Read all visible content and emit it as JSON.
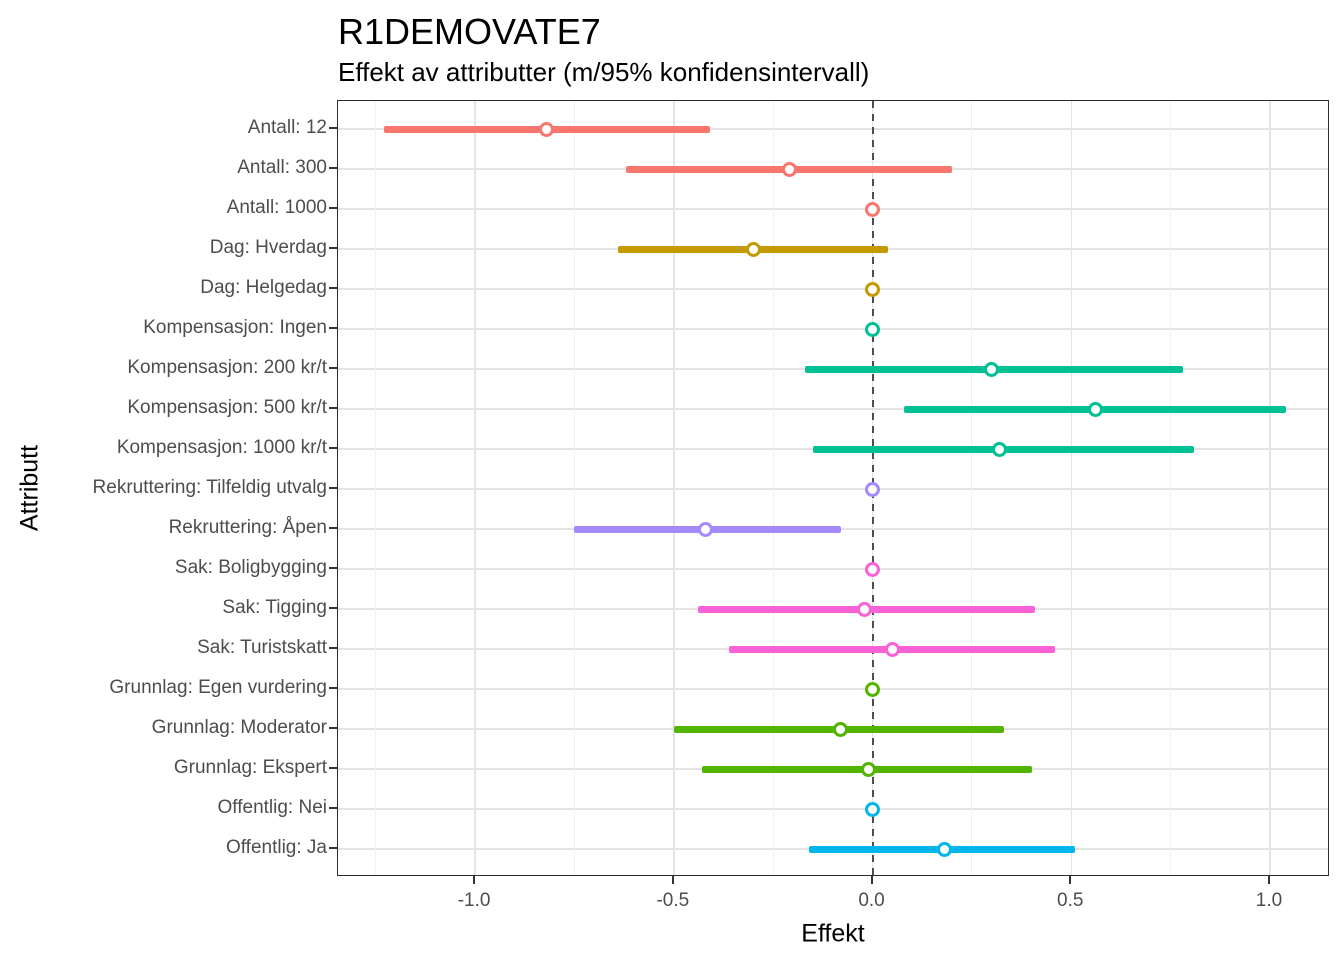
{
  "chart_data": {
    "type": "scatter",
    "subtype": "horizontal-pointrange-forest-plot",
    "title": "R1DEMOVATE7",
    "subtitle": "Effekt av attributter (m/95% konfidensintervall)",
    "xlabel": "Effekt",
    "ylabel": "Attributt",
    "xlim": [
      -1.345,
      1.151
    ],
    "x_major_ticks": [
      -1.0,
      -0.5,
      0.0,
      0.5,
      1.0
    ],
    "x_tick_labels": [
      "-1.0",
      "-0.5",
      "0.0",
      "0.5",
      "1.0"
    ],
    "x_minor_gridlines": [
      -1.25,
      -0.75,
      -0.25,
      0.25,
      0.75
    ],
    "reference_line_x": 0,
    "grid": true,
    "legend_position": "none",
    "rows": [
      {
        "label": "Antall: 12",
        "group": "Antall",
        "color": "#F8766D",
        "mean": -0.82,
        "lo": -1.23,
        "hi": -0.41
      },
      {
        "label": "Antall: 300",
        "group": "Antall",
        "color": "#F8766D",
        "mean": -0.21,
        "lo": -0.62,
        "hi": 0.2
      },
      {
        "label": "Antall: 1000",
        "group": "Antall",
        "color": "#F8766D",
        "mean": 0.0,
        "lo": 0.0,
        "hi": 0.0
      },
      {
        "label": "Dag: Hverdag",
        "group": "Dag",
        "color": "#C49A00",
        "mean": -0.3,
        "lo": -0.64,
        "hi": 0.04
      },
      {
        "label": "Dag: Helgedag",
        "group": "Dag",
        "color": "#C49A00",
        "mean": 0.0,
        "lo": 0.0,
        "hi": 0.0
      },
      {
        "label": "Kompensasjon: Ingen",
        "group": "Kompensasjon",
        "color": "#00C094",
        "mean": 0.0,
        "lo": 0.0,
        "hi": 0.0
      },
      {
        "label": "Kompensasjon: 200 kr/t",
        "group": "Kompensasjon",
        "color": "#00C094",
        "mean": 0.3,
        "lo": -0.17,
        "hi": 0.78
      },
      {
        "label": "Kompensasjon: 500 kr/t",
        "group": "Kompensasjon",
        "color": "#00C094",
        "mean": 0.56,
        "lo": 0.08,
        "hi": 1.04
      },
      {
        "label": "Kompensasjon: 1000 kr/t",
        "group": "Kompensasjon",
        "color": "#00C094",
        "mean": 0.32,
        "lo": -0.15,
        "hi": 0.81
      },
      {
        "label": "Rekruttering: Tilfeldig utvalg",
        "group": "Rekruttering",
        "color": "#A58AFF",
        "mean": 0.0,
        "lo": 0.0,
        "hi": 0.0
      },
      {
        "label": "Rekruttering: Åpen",
        "group": "Rekruttering",
        "color": "#A58AFF",
        "mean": -0.42,
        "lo": -0.75,
        "hi": -0.08
      },
      {
        "label": "Sak: Boligbygging",
        "group": "Sak",
        "color": "#FB61D7",
        "mean": 0.0,
        "lo": 0.0,
        "hi": 0.0
      },
      {
        "label": "Sak: Tigging",
        "group": "Sak",
        "color": "#FB61D7",
        "mean": -0.02,
        "lo": -0.44,
        "hi": 0.41
      },
      {
        "label": "Sak: Turistskatt",
        "group": "Sak",
        "color": "#FB61D7",
        "mean": 0.05,
        "lo": -0.36,
        "hi": 0.46
      },
      {
        "label": "Grunnlag: Egen vurdering",
        "group": "Grunnlag",
        "color": "#53B400",
        "mean": 0.0,
        "lo": 0.0,
        "hi": 0.0
      },
      {
        "label": "Grunnlag: Moderator",
        "group": "Grunnlag",
        "color": "#53B400",
        "mean": -0.08,
        "lo": -0.5,
        "hi": 0.33
      },
      {
        "label": "Grunnlag: Ekspert",
        "group": "Grunnlag",
        "color": "#53B400",
        "mean": -0.01,
        "lo": -0.43,
        "hi": 0.4
      },
      {
        "label": "Offentlig: Nei",
        "group": "Offentlig",
        "color": "#00B6EB",
        "mean": 0.0,
        "lo": 0.0,
        "hi": 0.0
      },
      {
        "label": "Offentlig: Ja",
        "group": "Offentlig",
        "color": "#00B6EB",
        "mean": 0.18,
        "lo": -0.16,
        "hi": 0.51
      }
    ],
    "style_colors": {
      "gridline_major": "#e3e3e3",
      "gridline_minor": "#f0f0f0",
      "panel_border": "#2e2e2e",
      "axis_text": "#4d4d4d",
      "reference_line": "#4d4d4d",
      "background": "#ffffff"
    }
  }
}
